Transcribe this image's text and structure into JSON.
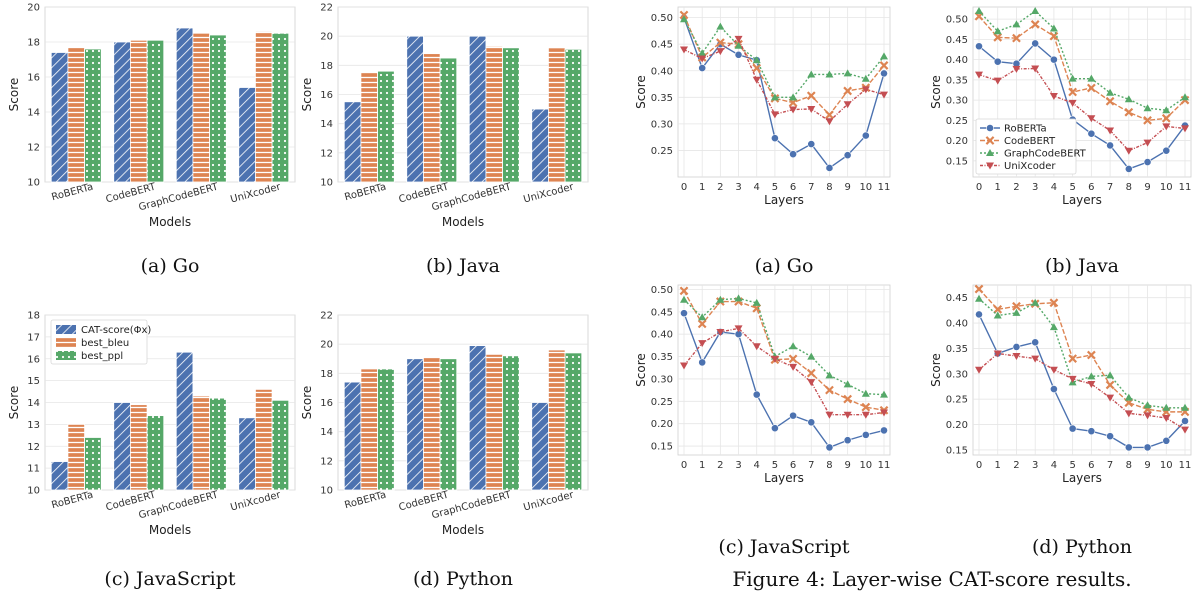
{
  "colors": {
    "blue": "#4c72b0",
    "orange": "#dd8452",
    "green": "#55a868",
    "red": "#c44e52",
    "grid": "#e6e6e6"
  },
  "figure_caption": "Figure 4: Layer-wise CAT-score results.",
  "chart_data": [
    {
      "id": "bar-go",
      "type": "bar",
      "subcaption": "(a)  Go",
      "xlabel": "Models",
      "ylabel": "Score",
      "ylim": [
        10,
        20
      ],
      "yticks": [
        10,
        12,
        14,
        16,
        18,
        20
      ],
      "categories": [
        "RoBERTa",
        "CodeBERT",
        "GraphCodeBERT",
        "UniXcoder"
      ],
      "series": [
        {
          "name": "CAT-score(Φx)",
          "values": [
            17.4,
            18.0,
            18.8,
            15.4
          ]
        },
        {
          "name": "best_bleu",
          "values": [
            17.7,
            18.1,
            18.5,
            18.6
          ]
        },
        {
          "name": "best_ppl",
          "values": [
            17.6,
            18.1,
            18.4,
            18.5
          ]
        }
      ]
    },
    {
      "id": "bar-java",
      "type": "bar",
      "subcaption": "(b)  Java",
      "xlabel": "Models",
      "ylabel": "Score",
      "ylim": [
        10,
        22
      ],
      "yticks": [
        10,
        12,
        14,
        16,
        18,
        20,
        22
      ],
      "categories": [
        "RoBERTa",
        "CodeBERT",
        "GraphCodeBERT",
        "UniXcoder"
      ],
      "series": [
        {
          "name": "CAT-score(Φx)",
          "values": [
            15.5,
            20.0,
            20.0,
            15.0
          ]
        },
        {
          "name": "best_bleu",
          "values": [
            17.5,
            18.8,
            19.3,
            19.2
          ]
        },
        {
          "name": "best_ppl",
          "values": [
            17.6,
            18.5,
            19.2,
            19.1
          ]
        }
      ]
    },
    {
      "id": "bar-js",
      "type": "bar",
      "subcaption": "(c)  JavaScript",
      "xlabel": "Models",
      "ylabel": "Score",
      "ylim": [
        10,
        18
      ],
      "yticks": [
        10,
        11,
        12,
        13,
        14,
        15,
        16,
        17,
        18
      ],
      "legend": "top-left",
      "categories": [
        "RoBERTa",
        "CodeBERT",
        "GraphCodeBERT",
        "UniXcoder"
      ],
      "series": [
        {
          "name": "CAT-score(Φx)",
          "values": [
            11.3,
            14.0,
            16.3,
            13.3
          ]
        },
        {
          "name": "best_bleu",
          "values": [
            13.0,
            13.9,
            14.3,
            14.6
          ]
        },
        {
          "name": "best_ppl",
          "values": [
            12.4,
            13.4,
            14.2,
            14.1
          ]
        }
      ]
    },
    {
      "id": "bar-py",
      "type": "bar",
      "subcaption": "(d)  Python",
      "xlabel": "Models",
      "ylabel": "Score",
      "ylim": [
        10,
        22
      ],
      "yticks": [
        10,
        12,
        14,
        16,
        18,
        20,
        22
      ],
      "categories": [
        "RoBERTa",
        "CodeBERT",
        "GraphCodeBERT",
        "UniXcoder"
      ],
      "series": [
        {
          "name": "CAT-score(Φx)",
          "values": [
            17.4,
            19.0,
            19.9,
            16.0
          ]
        },
        {
          "name": "best_bleu",
          "values": [
            18.3,
            19.1,
            19.3,
            19.6
          ]
        },
        {
          "name": "best_ppl",
          "values": [
            18.3,
            19.0,
            19.2,
            19.4
          ]
        }
      ]
    },
    {
      "id": "line-go",
      "type": "line",
      "subcaption": "(a)  Go",
      "xlabel": "Layers",
      "ylabel": "Score",
      "ylim": [
        0.2,
        0.52
      ],
      "yticks": [
        0.25,
        0.3,
        0.35,
        0.4,
        0.45,
        0.5
      ],
      "x": [
        0,
        1,
        2,
        3,
        4,
        5,
        6,
        7,
        8,
        9,
        10,
        11
      ],
      "series": [
        {
          "name": "RoBERTa",
          "values": [
            0.5,
            0.405,
            0.45,
            0.43,
            0.42,
            0.273,
            0.243,
            0.262,
            0.217,
            0.241,
            0.278,
            0.395
          ]
        },
        {
          "name": "CodeBERT",
          "values": [
            0.505,
            0.425,
            0.453,
            0.45,
            0.405,
            0.348,
            0.34,
            0.353,
            0.317,
            0.362,
            0.368,
            0.41
          ]
        },
        {
          "name": "GraphCodeBERT",
          "values": [
            0.497,
            0.433,
            0.483,
            0.447,
            0.42,
            0.35,
            0.35,
            0.393,
            0.393,
            0.395,
            0.385,
            0.427
          ]
        },
        {
          "name": "UniXcoder",
          "values": [
            0.44,
            0.423,
            0.437,
            0.46,
            0.383,
            0.318,
            0.327,
            0.328,
            0.305,
            0.337,
            0.365,
            0.355
          ]
        }
      ]
    },
    {
      "id": "line-java",
      "type": "line",
      "subcaption": "(b)  Java",
      "xlabel": "Layers",
      "ylabel": "Score",
      "ylim": [
        0.11,
        0.53
      ],
      "yticks": [
        0.15,
        0.2,
        0.25,
        0.3,
        0.35,
        0.4,
        0.45,
        0.5
      ],
      "legend": "bottom-left",
      "x": [
        0,
        1,
        2,
        3,
        4,
        5,
        6,
        7,
        8,
        9,
        10,
        11
      ],
      "series": [
        {
          "name": "RoBERTa",
          "values": [
            0.433,
            0.395,
            0.39,
            0.44,
            0.4,
            0.252,
            0.217,
            0.188,
            0.13,
            0.147,
            0.175,
            0.237
          ]
        },
        {
          "name": "CodeBERT",
          "values": [
            0.507,
            0.455,
            0.453,
            0.487,
            0.458,
            0.32,
            0.33,
            0.297,
            0.27,
            0.25,
            0.255,
            0.3
          ]
        },
        {
          "name": "GraphCodeBERT",
          "values": [
            0.52,
            0.47,
            0.487,
            0.52,
            0.477,
            0.353,
            0.353,
            0.318,
            0.302,
            0.28,
            0.275,
            0.307
          ]
        },
        {
          "name": "UniXcoder",
          "values": [
            0.363,
            0.348,
            0.377,
            0.378,
            0.31,
            0.293,
            0.255,
            0.225,
            0.175,
            0.195,
            0.235,
            0.23
          ]
        }
      ]
    },
    {
      "id": "line-js",
      "type": "line",
      "subcaption": "(c)  JavaScript",
      "xlabel": "Layers",
      "ylabel": "Score",
      "ylim": [
        0.13,
        0.51
      ],
      "yticks": [
        0.15,
        0.2,
        0.25,
        0.3,
        0.35,
        0.4,
        0.45,
        0.5
      ],
      "x": [
        0,
        1,
        2,
        3,
        4,
        5,
        6,
        7,
        8,
        9,
        10,
        11
      ],
      "series": [
        {
          "name": "RoBERTa",
          "values": [
            0.447,
            0.337,
            0.405,
            0.4,
            0.265,
            0.19,
            0.218,
            0.203,
            0.147,
            0.163,
            0.175,
            0.185
          ]
        },
        {
          "name": "CodeBERT",
          "values": [
            0.497,
            0.423,
            0.473,
            0.473,
            0.458,
            0.343,
            0.345,
            0.313,
            0.275,
            0.255,
            0.237,
            0.23
          ]
        },
        {
          "name": "GraphCodeBERT",
          "values": [
            0.477,
            0.438,
            0.477,
            0.48,
            0.47,
            0.35,
            0.373,
            0.35,
            0.308,
            0.288,
            0.267,
            0.265
          ]
        },
        {
          "name": "UniXcoder",
          "values": [
            0.33,
            0.38,
            0.405,
            0.413,
            0.373,
            0.345,
            0.327,
            0.293,
            0.22,
            0.22,
            0.22,
            0.225
          ]
        }
      ]
    },
    {
      "id": "line-py",
      "type": "line",
      "subcaption": "(d)  Python",
      "xlabel": "Layers",
      "ylabel": "Score",
      "ylim": [
        0.14,
        0.475
      ],
      "yticks": [
        0.15,
        0.2,
        0.25,
        0.3,
        0.35,
        0.4,
        0.45
      ],
      "x": [
        0,
        1,
        2,
        3,
        4,
        5,
        6,
        7,
        8,
        9,
        10,
        11
      ],
      "series": [
        {
          "name": "RoBERTa",
          "values": [
            0.417,
            0.34,
            0.353,
            0.362,
            0.27,
            0.192,
            0.187,
            0.177,
            0.155,
            0.155,
            0.168,
            0.207
          ]
        },
        {
          "name": "CodeBERT",
          "values": [
            0.467,
            0.427,
            0.433,
            0.438,
            0.44,
            0.33,
            0.337,
            0.278,
            0.243,
            0.23,
            0.225,
            0.225
          ]
        },
        {
          "name": "GraphCodeBERT",
          "values": [
            0.448,
            0.415,
            0.42,
            0.44,
            0.392,
            0.283,
            0.295,
            0.297,
            0.253,
            0.238,
            0.233,
            0.233
          ]
        },
        {
          "name": "UniXcoder",
          "values": [
            0.308,
            0.34,
            0.335,
            0.33,
            0.308,
            0.29,
            0.28,
            0.253,
            0.222,
            0.218,
            0.213,
            0.19
          ]
        }
      ]
    }
  ]
}
